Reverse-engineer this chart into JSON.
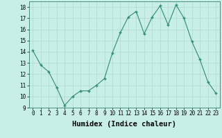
{
  "x": [
    0,
    1,
    2,
    3,
    4,
    5,
    6,
    7,
    8,
    9,
    10,
    11,
    12,
    13,
    14,
    15,
    16,
    17,
    18,
    19,
    20,
    21,
    22,
    23
  ],
  "y": [
    14.1,
    12.8,
    12.2,
    10.8,
    9.2,
    10.0,
    10.5,
    10.5,
    11.0,
    11.6,
    13.9,
    15.7,
    17.1,
    17.6,
    15.6,
    17.1,
    18.1,
    16.4,
    18.2,
    17.0,
    14.9,
    13.3,
    11.3,
    10.3
  ],
  "xlabel": "Humidex (Indice chaleur)",
  "ylim": [
    9,
    18.5
  ],
  "xlim": [
    -0.5,
    23.5
  ],
  "yticks": [
    9,
    10,
    11,
    12,
    13,
    14,
    15,
    16,
    17,
    18
  ],
  "xticks": [
    0,
    1,
    2,
    3,
    4,
    5,
    6,
    7,
    8,
    9,
    10,
    11,
    12,
    13,
    14,
    15,
    16,
    17,
    18,
    19,
    20,
    21,
    22,
    23
  ],
  "line_color": "#2E8B75",
  "marker_color": "#2E8B75",
  "bg_color": "#C8EEE8",
  "grid_color": "#B0D8D0",
  "tick_fontsize": 5.5,
  "xlabel_fontsize": 7.5
}
